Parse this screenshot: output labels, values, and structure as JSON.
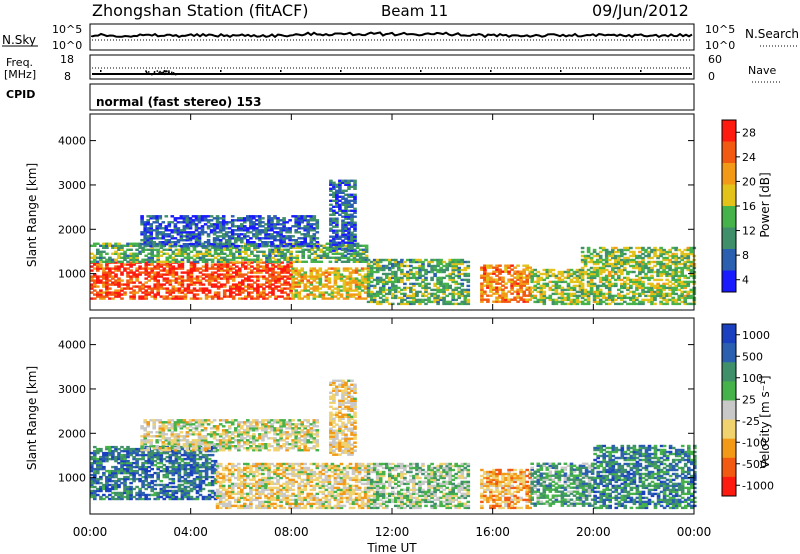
{
  "header": {
    "station": "Zhongshan Station (fitACF)",
    "beam": "Beam 11",
    "date": "09/Jun/2012"
  },
  "top_panels": {
    "nsky_label": "N.Sky",
    "nsky_ticks": [
      "10^5",
      "10^0"
    ],
    "nsearch_label": "N.Search",
    "nsearch_ticks": [
      "10^5",
      "10^0"
    ],
    "freq_label": "Freq.",
    "freq_unit": "[MHz]",
    "freq_ticks": [
      "18",
      "8"
    ],
    "nave_label": "Nave",
    "nave_ticks": [
      "60",
      "0"
    ],
    "cpid_label": "CPID",
    "cpid_value": "normal (fast stereo) 153"
  },
  "colors": {
    "power_scale": [
      "#1a1aff",
      "#2b5fb0",
      "#3f8f6a",
      "#46b24a",
      "#e3c21a",
      "#f29a18",
      "#f25a12",
      "#ff1a10"
    ],
    "velocity_scale": [
      "#ff1a10",
      "#f25a12",
      "#f29a18",
      "#f0d26e",
      "#c8c8c8",
      "#46b24a",
      "#3f8f6a",
      "#2b5fb0",
      "#1a40c0"
    ]
  },
  "chart_data": [
    {
      "type": "heatmap",
      "title": "",
      "xlabel": "Time UT",
      "ylabel": "Slant Range [km]",
      "x_ticks": [
        "00:00",
        "04:00",
        "08:00",
        "12:00",
        "16:00",
        "20:00",
        "00:00"
      ],
      "y_ticks": [
        1000,
        2000,
        3000,
        4000
      ],
      "ylim": [
        180,
        4600
      ],
      "colorbar": {
        "label": "Power [dB]",
        "ticks": [
          "28",
          "24",
          "20",
          "16",
          "12",
          "8",
          "4"
        ],
        "range": [
          0,
          30
        ]
      },
      "regions": [
        {
          "t0": 0.0,
          "t1": 8.0,
          "r0": 420,
          "r1": 1250,
          "value": 26
        },
        {
          "t0": 8.0,
          "t1": 11.0,
          "r0": 420,
          "r1": 1100,
          "value": 18
        },
        {
          "t0": 0.0,
          "t1": 11.0,
          "r0": 1250,
          "r1": 1700,
          "value": 12
        },
        {
          "t0": 11.0,
          "t1": 15.0,
          "r0": 300,
          "r1": 1300,
          "value": 12
        },
        {
          "t0": 15.5,
          "t1": 17.5,
          "r0": 350,
          "r1": 1200,
          "value": 22
        },
        {
          "t0": 17.5,
          "t1": 19.5,
          "r0": 300,
          "r1": 1100,
          "value": 14
        },
        {
          "t0": 19.5,
          "t1": 24.0,
          "r0": 300,
          "r1": 1600,
          "value": 14
        },
        {
          "t0": 2.0,
          "t1": 9.0,
          "r0": 1600,
          "r1": 2300,
          "value": 6
        },
        {
          "t0": 9.5,
          "t1": 10.5,
          "r0": 1500,
          "r1": 3100,
          "value": 6
        }
      ]
    },
    {
      "type": "heatmap",
      "title": "",
      "xlabel": "Time UT",
      "ylabel": "Slant Range [km]",
      "x_ticks": [
        "00:00",
        "04:00",
        "08:00",
        "12:00",
        "16:00",
        "20:00",
        "00:00"
      ],
      "y_ticks": [
        1000,
        2000,
        3000,
        4000
      ],
      "ylim": [
        180,
        4600
      ],
      "colorbar": {
        "label": "Velocity [m s⁻¹]",
        "ticks": [
          "1000",
          "500",
          "100",
          "25",
          "-25",
          "-100",
          "-500",
          "-1000"
        ],
        "range": [
          -1000,
          1000
        ]
      },
      "regions": [
        {
          "t0": 0.0,
          "t1": 5.0,
          "r0": 500,
          "r1": 1700,
          "value": 600
        },
        {
          "t0": 5.0,
          "t1": 11.0,
          "r0": 300,
          "r1": 1300,
          "value": -150
        },
        {
          "t0": 11.0,
          "t1": 15.0,
          "r0": 300,
          "r1": 1300,
          "value": 120
        },
        {
          "t0": 15.5,
          "t1": 17.5,
          "r0": 300,
          "r1": 1200,
          "value": -400
        },
        {
          "t0": 17.5,
          "t1": 20.0,
          "r0": 350,
          "r1": 1300,
          "value": 300
        },
        {
          "t0": 20.0,
          "t1": 24.0,
          "r0": 300,
          "r1": 1700,
          "value": 500
        },
        {
          "t0": 2.0,
          "t1": 9.0,
          "r0": 1600,
          "r1": 2300,
          "value": -50
        },
        {
          "t0": 9.5,
          "t1": 10.5,
          "r0": 1500,
          "r1": 3200,
          "value": -200
        }
      ]
    }
  ]
}
